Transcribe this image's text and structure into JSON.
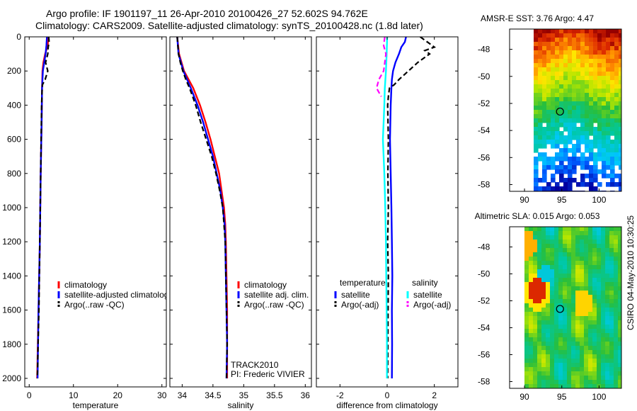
{
  "header": {
    "line1": "Argo profile: IF 1901197_11 26-Apr-2010 20100426_27 52.602S 94.762E",
    "line2": "Climatology: CARS2009. Satellite-adjusted climatology: synTS_20100428.nc (1.8d later)"
  },
  "side_label": "CSIRO 04-May-2010 10:30:25",
  "colors": {
    "climatology": "#ff0000",
    "satellite": "#0000ff",
    "argo": "#000000",
    "sal_satellite": "#00ffff",
    "sal_argo": "#ff00ff"
  },
  "chart_data": [
    {
      "id": "temperature",
      "type": "line",
      "xlabel": "temperature",
      "ylabel": "",
      "xlim": [
        -1,
        31
      ],
      "ylim": [
        2050,
        0
      ],
      "y_reversed": true,
      "xticks": [
        0,
        10,
        20,
        30
      ],
      "xtick_labels": [
        "0",
        "10",
        "20",
        "30"
      ],
      "yticks": [
        0,
        200,
        400,
        600,
        800,
        1000,
        1200,
        1400,
        1600,
        1800,
        2000
      ],
      "ytick_labels": [
        "0",
        "200",
        "400",
        "600",
        "800",
        "1000",
        "1200",
        "1400",
        "1600",
        "1800",
        "2000"
      ],
      "legend": [
        "climatology",
        "satellite-adjusted climatolog",
        "Argo(..raw -QC)"
      ],
      "legend_location": "lower-right",
      "series": [
        {
          "name": "climatology",
          "style": "solid",
          "color": "#ff0000",
          "y": [
            0,
            50,
            100,
            150,
            200,
            300,
            500,
            800,
            1200,
            1600,
            2000
          ],
          "x": [
            4.3,
            4.2,
            3.6,
            3.2,
            3.0,
            2.9,
            2.8,
            2.6,
            2.4,
            2.1,
            1.8
          ]
        },
        {
          "name": "satellite-adjusted climatolog",
          "style": "solid",
          "color": "#0000ff",
          "y": [
            0,
            50,
            100,
            150,
            200,
            300,
            500,
            800,
            1200,
            1600,
            2000
          ],
          "x": [
            4.0,
            3.9,
            3.7,
            3.4,
            3.1,
            2.9,
            2.8,
            2.6,
            2.4,
            2.1,
            1.9
          ]
        },
        {
          "name": "Argo(..raw -QC)",
          "style": "dashed",
          "color": "#000000",
          "y": [
            0,
            30,
            60,
            100,
            150,
            200,
            250,
            280,
            320,
            400,
            600,
            800,
            1000,
            1200,
            1400,
            1600,
            1800,
            1950,
            2000
          ],
          "x": [
            4.4,
            4.5,
            4.3,
            4.2,
            3.7,
            4.2,
            3.6,
            3.0,
            2.9,
            2.8,
            2.7,
            2.6,
            2.5,
            2.4,
            2.3,
            2.2,
            2.0,
            1.9,
            1.8
          ]
        }
      ]
    },
    {
      "id": "salinity",
      "type": "line",
      "xlabel": "salinity",
      "ylabel": "",
      "xlim": [
        33.8,
        36.1
      ],
      "ylim": [
        2050,
        0
      ],
      "y_reversed": true,
      "xticks": [
        34,
        34.5,
        35,
        35.5,
        36
      ],
      "xtick_labels": [
        "34",
        "34.5",
        "35",
        "35.5",
        "36"
      ],
      "legend": [
        "climatology",
        "satellite adj. clim.",
        "Argo(..raw -QC)"
      ],
      "legend_location": "lower-right",
      "annotations": [
        "TRACK2010",
        "PI: Frederic VIVIER"
      ],
      "series": [
        {
          "name": "climatology",
          "style": "solid",
          "color": "#ff0000",
          "y": [
            0,
            100,
            200,
            300,
            400,
            500,
            600,
            700,
            800,
            900,
            1000,
            1100,
            1200,
            1400,
            1600,
            1800,
            2000
          ],
          "x": [
            33.92,
            33.95,
            34.03,
            34.18,
            34.29,
            34.38,
            34.46,
            34.53,
            34.6,
            34.64,
            34.68,
            34.7,
            34.71,
            34.72,
            34.73,
            34.73,
            34.73
          ]
        },
        {
          "name": "satellite adj. clim.",
          "style": "solid",
          "color": "#0000ff",
          "y": [
            0,
            100,
            200,
            300,
            400,
            500,
            600,
            700,
            800,
            900,
            1000,
            1100,
            1200,
            1400,
            1600,
            1800,
            2000
          ],
          "x": [
            33.92,
            33.94,
            34.02,
            34.14,
            34.25,
            34.34,
            34.42,
            34.5,
            34.56,
            34.62,
            34.66,
            34.69,
            34.7,
            34.71,
            34.72,
            34.73,
            34.72
          ]
        },
        {
          "name": "Argo(..raw -QC)",
          "style": "dashed",
          "color": "#000000",
          "y": [
            0,
            100,
            150,
            200,
            250,
            300,
            350,
            400,
            450,
            500,
            600,
            700,
            800,
            900,
            1000,
            1100,
            1200,
            1400,
            1600,
            1800,
            2000
          ],
          "x": [
            33.92,
            33.94,
            33.97,
            34.01,
            34.06,
            34.12,
            34.17,
            34.22,
            34.26,
            34.3,
            34.39,
            34.48,
            34.55,
            34.61,
            34.66,
            34.68,
            34.7,
            34.71,
            34.72,
            34.73,
            34.72
          ]
        }
      ]
    },
    {
      "id": "difference",
      "type": "line",
      "xlabel": "difference from climatology",
      "ylabel": "",
      "xlim": [
        -3,
        3
      ],
      "ylim": [
        2050,
        0
      ],
      "y_reversed": true,
      "xticks": [
        -2,
        0,
        2
      ],
      "xtick_labels": [
        "-2",
        "0",
        "2"
      ],
      "legend_groups": [
        {
          "title": "temperature",
          "entries": [
            "satellite",
            "Argo(-adj)"
          ]
        },
        {
          "title": "salinity",
          "entries": [
            "satellite",
            "Argo(-adj)"
          ]
        }
      ],
      "series": [
        {
          "name": "temperature satellite",
          "style": "solid",
          "color": "#0000ff",
          "y": [
            0,
            30,
            60,
            100,
            150,
            200,
            250,
            300,
            400,
            600,
            800,
            1000,
            1200,
            1400,
            1600,
            1800,
            2000
          ],
          "x": [
            0.8,
            0.75,
            0.6,
            0.5,
            0.35,
            0.25,
            0.2,
            0.18,
            0.15,
            0.12,
            0.15,
            0.18,
            0.2,
            0.22,
            0.2,
            0.21,
            0.2
          ]
        },
        {
          "name": "temperature Argo(-adj)",
          "style": "dashed",
          "color": "#000000",
          "y": [
            0,
            30,
            60,
            80,
            100,
            150,
            200,
            250,
            280,
            300,
            350,
            400,
            600,
            800,
            1000,
            1200,
            1400,
            1600,
            1800,
            2000
          ],
          "x": [
            1.4,
            1.7,
            2.0,
            1.6,
            1.8,
            1.3,
            0.9,
            0.5,
            0.3,
            0.1,
            0.05,
            0.02,
            0.05,
            0.03,
            0.05,
            0.02,
            0.05,
            0.04,
            0.03,
            0.02
          ]
        },
        {
          "name": "salinity satellite",
          "style": "solid",
          "color": "#00ffff",
          "y": [
            0,
            100,
            200,
            300,
            400,
            500,
            600,
            700,
            800,
            900,
            1000,
            1200,
            1400,
            1600,
            1800,
            2000
          ],
          "x": [
            0.0,
            -0.02,
            -0.05,
            -0.1,
            -0.12,
            -0.15,
            -0.18,
            -0.15,
            -0.12,
            -0.1,
            -0.08,
            -0.05,
            -0.04,
            -0.02,
            -0.01,
            -0.01
          ]
        },
        {
          "name": "salinity Argo(-adj)",
          "style": "dashed",
          "color": "#ff00ff",
          "y": [
            0,
            50,
            100,
            150,
            200,
            250,
            300,
            350
          ],
          "x": [
            -0.1,
            -0.15,
            -0.05,
            -0.1,
            -0.15,
            -0.35,
            -0.45,
            -0.25
          ]
        }
      ]
    },
    {
      "id": "sst-map",
      "type": "heatmap",
      "title": "AMSR-E SST: 3.76 Argo: 4.47",
      "xlim": [
        88,
        103
      ],
      "ylim": [
        -58.5,
        -46.5
      ],
      "xticks": [
        90,
        95,
        100
      ],
      "xtick_labels": [
        "90",
        "95",
        "100"
      ],
      "yticks": [
        -48,
        -50,
        -52,
        -54,
        -56,
        -58
      ],
      "ytick_labels": [
        "-48",
        "-50",
        "-52",
        "-54",
        "-56",
        "-58"
      ],
      "marker": {
        "lon": 94.762,
        "lat": -52.602
      },
      "data_lon_range": [
        91.3,
        103
      ]
    },
    {
      "id": "sla-map",
      "type": "heatmap",
      "title": "Altimetric SLA: 0.015 Argo: 0.053",
      "xlim": [
        88,
        103
      ],
      "ylim": [
        -58.5,
        -46.5
      ],
      "xticks": [
        90,
        95,
        100
      ],
      "xtick_labels": [
        "90",
        "95",
        "100"
      ],
      "yticks": [
        -48,
        -50,
        -52,
        -54,
        -56,
        -58
      ],
      "ytick_labels": [
        "-48",
        "-50",
        "-52",
        "-54",
        "-56",
        "-58"
      ],
      "marker": {
        "lon": 94.762,
        "lat": -52.602
      },
      "data_lon_range": [
        90,
        103
      ]
    }
  ]
}
